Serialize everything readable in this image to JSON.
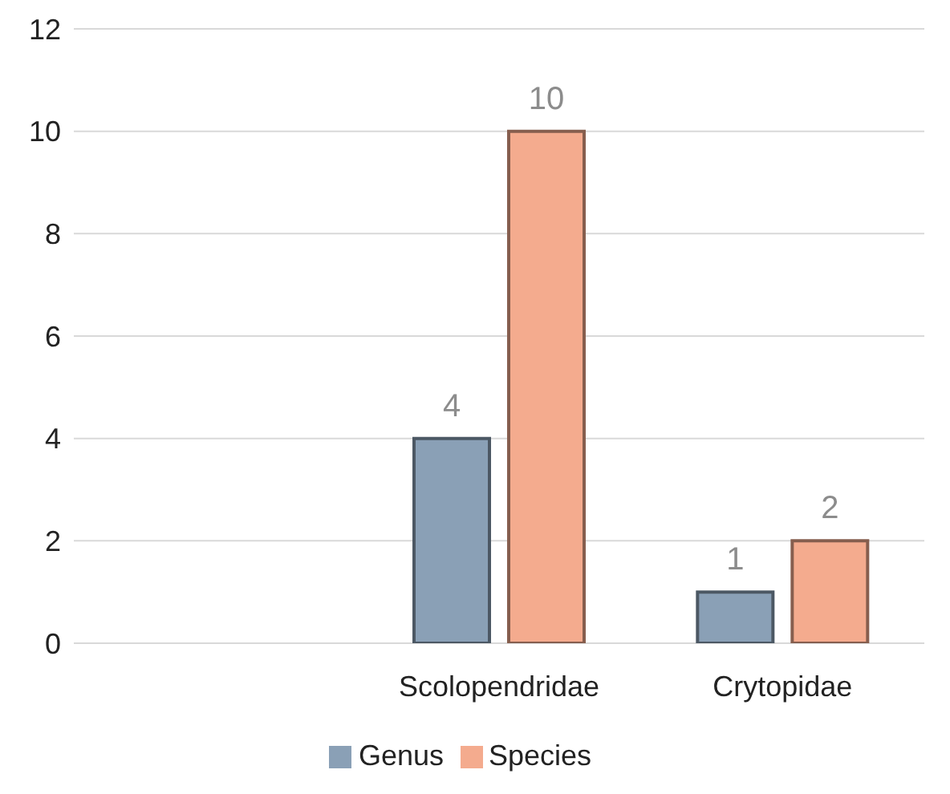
{
  "chart_data": {
    "type": "bar",
    "categories": [
      null,
      "Scolopendridae",
      "Crytopidae"
    ],
    "series": [
      {
        "name": "Genus",
        "color": "#8aa0b6",
        "values": [
          null,
          4,
          1
        ]
      },
      {
        "name": "Species",
        "color": "#f4ab8e",
        "values": [
          null,
          10,
          2
        ]
      }
    ],
    "ylim": [
      0,
      12
    ],
    "yticks": [
      0,
      2,
      4,
      6,
      8,
      10,
      12
    ],
    "grid": "y",
    "legend": "bottom",
    "data_labels": true
  }
}
